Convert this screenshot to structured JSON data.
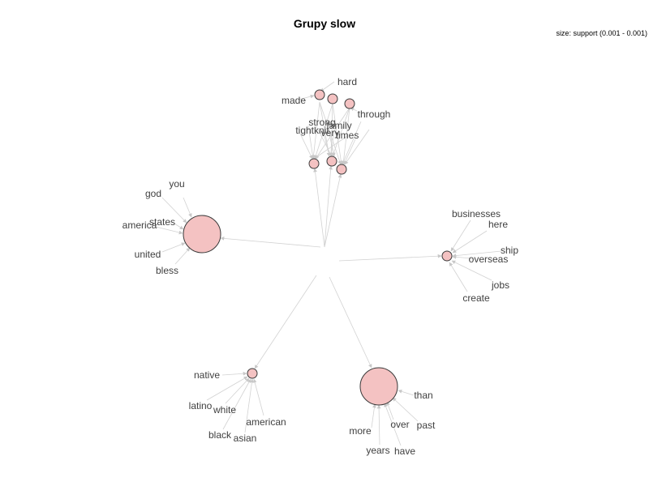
{
  "title": "Grupy slow",
  "legend": "size: support (0.001 - 0.001)",
  "colors": {
    "node_fill": "#f4c2c2",
    "node_stroke": "#3a3a3a",
    "edge": "#d2d2d2",
    "label": "#404040"
  },
  "words": [
    "hard",
    "made",
    "through",
    "strong",
    "family",
    "tightknit",
    "very",
    "times",
    "you",
    "god",
    "states",
    "america",
    "united",
    "bless",
    "businesses",
    "here",
    "ship",
    "overseas",
    "jobs",
    "create",
    "native",
    "latino",
    "white",
    "american",
    "black",
    "asian",
    "than",
    "over",
    "past",
    "more",
    "years",
    "have"
  ]
}
